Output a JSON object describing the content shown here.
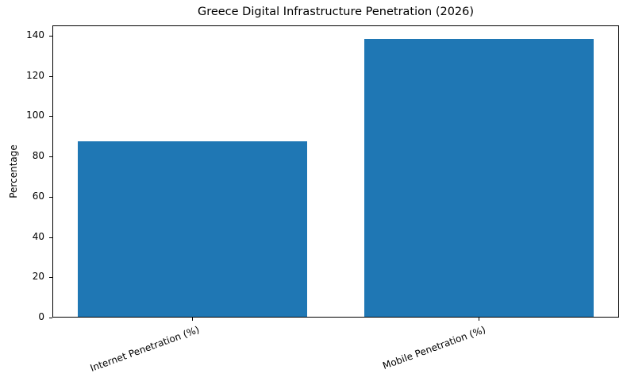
{
  "chart_data": {
    "type": "bar",
    "title": "Greece Digital Infrastructure Penetration (2026)",
    "categories": [
      "Internet Penetration (%)",
      "Mobile Penetration (%)"
    ],
    "values": [
      87,
      138
    ],
    "xlabel": "",
    "ylabel": "Percentage",
    "ylim": [
      0,
      145
    ],
    "yticks": [
      0,
      20,
      40,
      60,
      80,
      100,
      120,
      140
    ],
    "bar_color": "#1f77b4",
    "grid": false,
    "legend": null,
    "xtick_rotation": 20
  }
}
